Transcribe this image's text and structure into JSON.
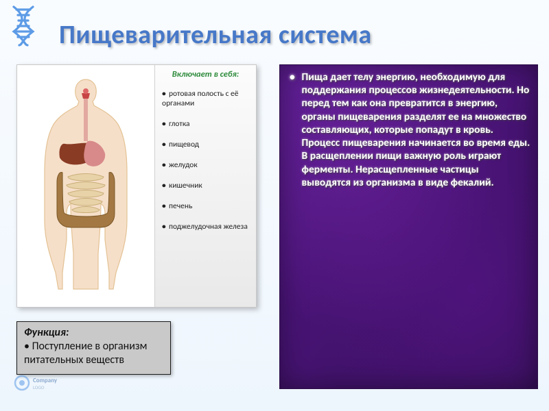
{
  "title": "Пищеварительная система",
  "left": {
    "includes_label": "Включает в себя:",
    "organs": [
      "ротовая полость с её органами",
      "глотка",
      "пищевод",
      "желудок",
      "кишечник",
      "печень",
      "поджелудочная железа"
    ],
    "function_label": "Функция:",
    "function_text": "Поступление в организм питательных веществ"
  },
  "right": {
    "bullet_text": "Пища дает телу энергию, необходимую для поддержания процессов жизнедеятельности. Но перед тем как она превратится в энергию, органы пищеварения разделят ее на множество составляющих, которые попадут в кровь. Процесс пищеварения начинается во время еды. В расщеплении пищи важную роль играют ферменты. Нерасщепленные частицы выводятся из организма в виде фекалий."
  },
  "colors": {
    "title_color": "#4778c8",
    "right_bg_1": "#5a1c90",
    "right_bg_2": "#36105a",
    "includes_label_color": "#2c8a3a",
    "fn_box_bg": "#c9c9c9",
    "anat_skin": "#f6dfc9",
    "anat_outline": "#e3c294",
    "liver": "#8a3b24",
    "stomach": "#d88a8a",
    "large_intestine": "#a47842",
    "small_intestine": "#e8d2a8",
    "mouth": "#c74545",
    "esophagus": "#e2a9a0"
  },
  "anat": {
    "body_outline": "M100 14 C92 14 86 20 85 28 C84 35 86 42 90 46 L88 52 C78 58 64 64 54 78 C44 94 40 120 40 150 L40 220 C40 248 48 272 56 296 L60 320 L66 320 L66 296 L72 248 L72 210 C72 200 76 196 78 196 C78 220 80 244 82 268 L82 320 L118 320 L118 268 C120 244 122 220 122 196 C124 196 128 200 128 210 L128 248 L134 296 L134 320 L140 320 L144 296 C152 272 160 248 160 220 L160 150 C160 120 156 94 146 78 C136 64 122 58 112 52 L110 46 C114 42 116 35 115 28 C114 20 108 14 100 14 Z"
  }
}
